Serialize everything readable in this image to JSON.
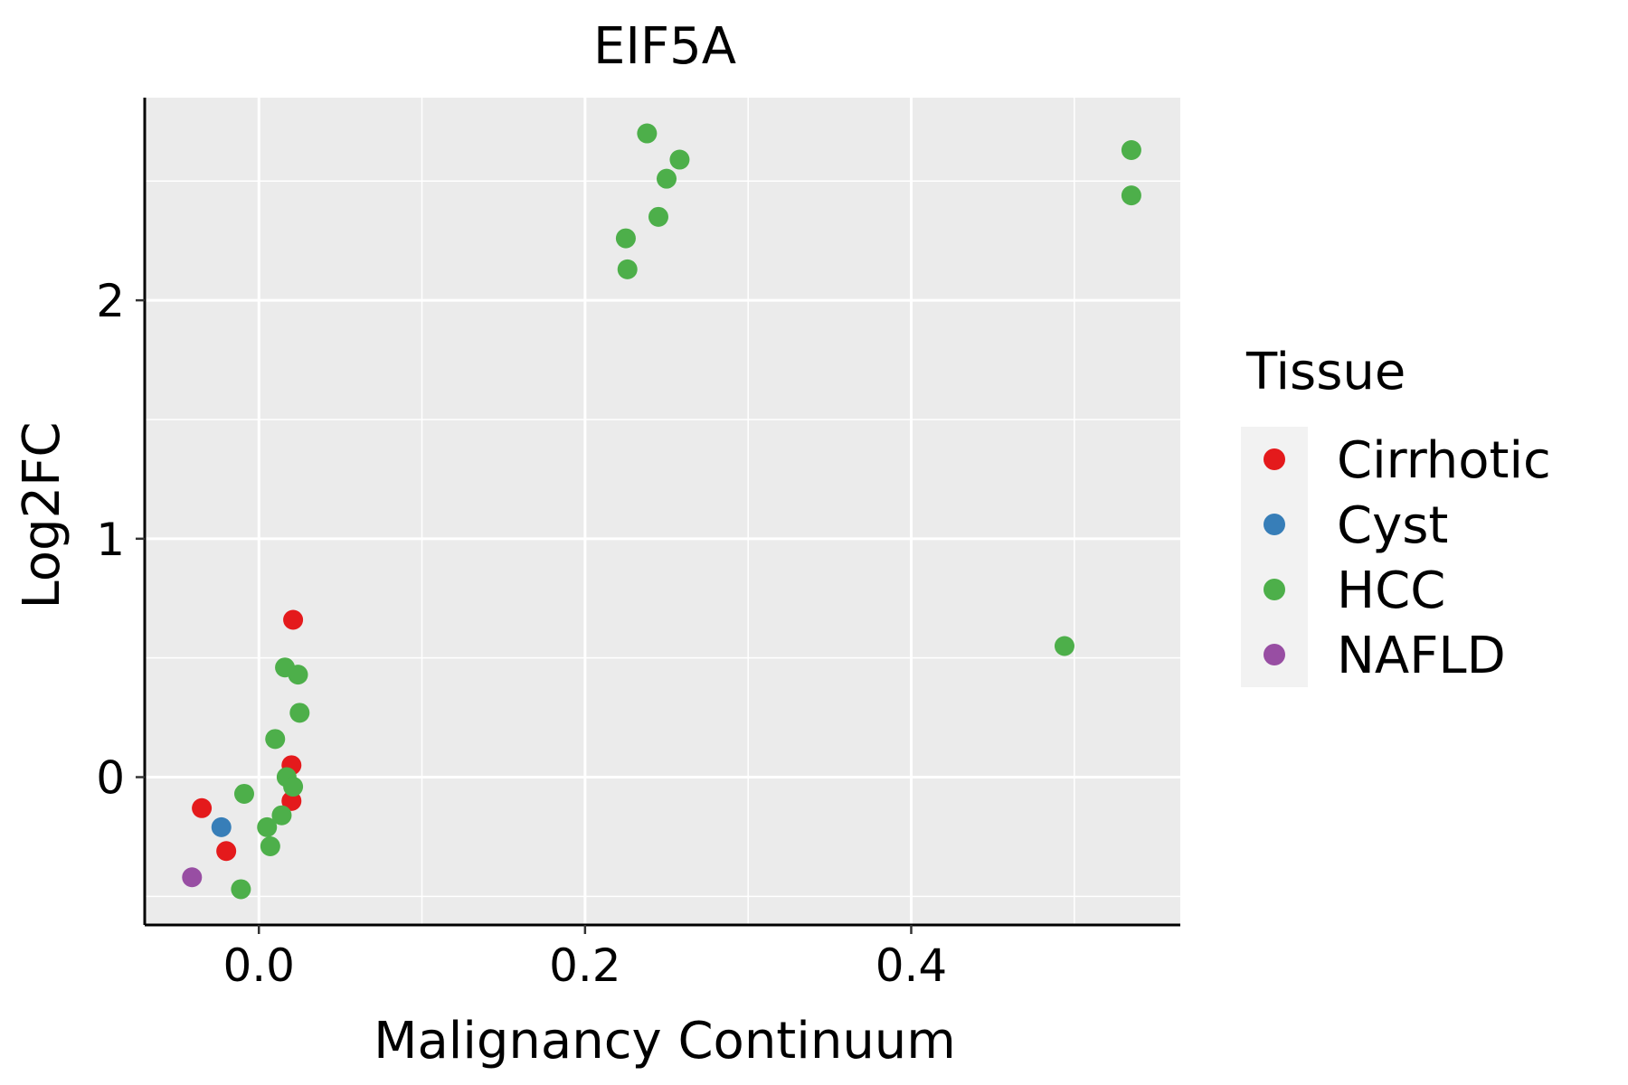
{
  "chart_data": {
    "type": "scatter",
    "title": "EIF5A",
    "xlabel": "Malignancy Continuum",
    "ylabel": "Log2FC",
    "xlim": [
      -0.07,
      0.565
    ],
    "ylim": [
      -0.62,
      2.85
    ],
    "x_ticks": [
      0.0,
      0.2,
      0.4
    ],
    "x_tick_labels": [
      "0.0",
      "0.2",
      "0.4"
    ],
    "x_minor": [
      -0.1,
      0.1,
      0.3,
      0.5
    ],
    "y_ticks": [
      0,
      1,
      2
    ],
    "y_tick_labels": [
      "0",
      "1",
      "2"
    ],
    "y_minor": [
      -0.5,
      0.5,
      1.5,
      2.5
    ],
    "legend": {
      "title": "Tissue",
      "position": "right",
      "entries": [
        "Cirrhotic",
        "Cyst",
        "HCC",
        "NAFLD"
      ]
    },
    "colors": {
      "Cirrhotic": "#E41A1C",
      "Cyst": "#377EB8",
      "HCC": "#4DAF4A",
      "NAFLD": "#984EA3",
      "panel": "#EBEBEB",
      "grid": "#FFFFFF",
      "legend_key_bg": "#F2F2F2"
    },
    "series": [
      {
        "name": "Cirrhotic",
        "points": [
          {
            "x": 0.021,
            "y": 0.66
          },
          {
            "x": 0.02,
            "y": 0.05
          },
          {
            "x": 0.02,
            "y": -0.1
          },
          {
            "x": -0.035,
            "y": -0.13
          },
          {
            "x": -0.02,
            "y": -0.31
          }
        ]
      },
      {
        "name": "Cyst",
        "points": [
          {
            "x": -0.023,
            "y": -0.21
          }
        ]
      },
      {
        "name": "HCC",
        "points": [
          {
            "x": 0.238,
            "y": 2.7
          },
          {
            "x": 0.258,
            "y": 2.59
          },
          {
            "x": 0.25,
            "y": 2.51
          },
          {
            "x": 0.245,
            "y": 2.35
          },
          {
            "x": 0.225,
            "y": 2.26
          },
          {
            "x": 0.226,
            "y": 2.13
          },
          {
            "x": 0.535,
            "y": 2.63
          },
          {
            "x": 0.535,
            "y": 2.44
          },
          {
            "x": 0.494,
            "y": 0.55
          },
          {
            "x": 0.016,
            "y": 0.46
          },
          {
            "x": 0.024,
            "y": 0.43
          },
          {
            "x": 0.025,
            "y": 0.27
          },
          {
            "x": 0.01,
            "y": 0.16
          },
          {
            "x": 0.017,
            "y": -0.0
          },
          {
            "x": 0.021,
            "y": -0.04
          },
          {
            "x": -0.009,
            "y": -0.07
          },
          {
            "x": 0.014,
            "y": -0.16
          },
          {
            "x": 0.005,
            "y": -0.21
          },
          {
            "x": 0.007,
            "y": -0.29
          },
          {
            "x": -0.011,
            "y": -0.47
          }
        ]
      },
      {
        "name": "NAFLD",
        "points": [
          {
            "x": -0.041,
            "y": -0.42
          }
        ]
      }
    ]
  }
}
